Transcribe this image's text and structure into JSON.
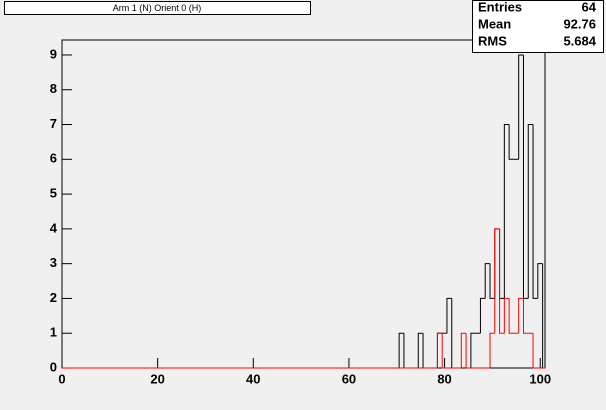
{
  "chart_data": {
    "type": "histogram",
    "title": "Arm 1 (N) Orient 0 (H)",
    "stats": {
      "labels": [
        "Entries",
        "Mean",
        "RMS"
      ],
      "values": [
        "64",
        "92.76",
        "5.684"
      ]
    },
    "bins": [
      69.5,
      70.5,
      71.5,
      72.5,
      73.5,
      74.5,
      75.5,
      76.5,
      77.5,
      78.5,
      79.5,
      80.5,
      81.5,
      82.5,
      83.5,
      84.5,
      85.5,
      86.5,
      87.5,
      88.5,
      89.5,
      90.5,
      91.5,
      92.5,
      93.5,
      94.5,
      95.5,
      96.5,
      97.5,
      98.5,
      99.5,
      100.5
    ],
    "series": [
      {
        "color": "#000000",
        "values": [
          0,
          1,
          0,
          0,
          0,
          1,
          0,
          0,
          0,
          1,
          1,
          2,
          0,
          0,
          0,
          0,
          1,
          1,
          2,
          3,
          2,
          4,
          2,
          7,
          6,
          6,
          9,
          2,
          7,
          2,
          3
        ]
      },
      {
        "color": "#ff0000",
        "values": [
          0,
          0,
          0,
          0,
          0,
          0,
          0,
          0,
          0,
          1,
          0,
          0,
          0,
          0,
          1,
          0,
          0,
          0,
          0,
          0,
          1,
          4,
          1,
          2,
          1,
          1,
          2,
          1,
          1,
          0,
          0
        ]
      }
    ],
    "xlim": [
      0,
      101
    ],
    "xticks": [
      0,
      20,
      40,
      60,
      80,
      100
    ],
    "ylim": [
      0,
      9.43
    ],
    "yticks": [
      0,
      1,
      2,
      3,
      4,
      5,
      6,
      7,
      8,
      9
    ]
  }
}
